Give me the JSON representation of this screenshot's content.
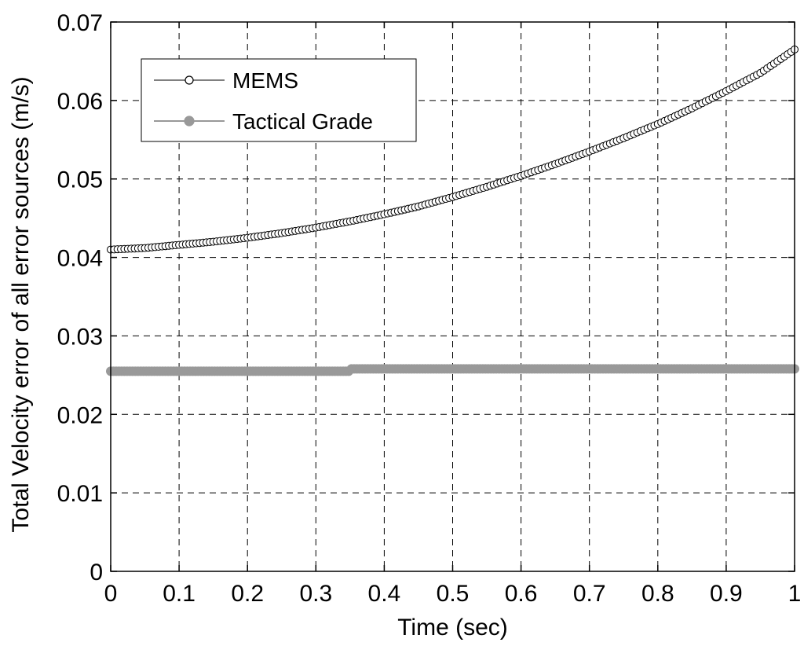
{
  "chart_data": {
    "type": "line",
    "title": "",
    "xlabel": "Time (sec)",
    "ylabel": "Total Velocity error of all error sources (m/s)",
    "xlim": [
      0,
      1
    ],
    "ylim": [
      0,
      0.07
    ],
    "xticks": [
      "0",
      "0.1",
      "0.2",
      "0.3",
      "0.4",
      "0.5",
      "0.6",
      "0.7",
      "0.8",
      "0.9",
      "1"
    ],
    "yticks": [
      "0",
      "0.01",
      "0.02",
      "0.03",
      "0.04",
      "0.05",
      "0.06",
      "0.07"
    ],
    "grid": true,
    "legend_position": "top-left",
    "series": [
      {
        "name": "MEMS",
        "color": "#000000",
        "marker": "open-circle",
        "x": [
          0,
          0.05,
          0.1,
          0.15,
          0.2,
          0.25,
          0.3,
          0.35,
          0.4,
          0.45,
          0.5,
          0.55,
          0.6,
          0.65,
          0.7,
          0.75,
          0.8,
          0.85,
          0.9,
          0.95,
          1.0
        ],
        "y": [
          0.041,
          0.0412,
          0.0416,
          0.042,
          0.0425,
          0.0431,
          0.0438,
          0.0446,
          0.0455,
          0.0465,
          0.0477,
          0.049,
          0.0504,
          0.0519,
          0.0535,
          0.0552,
          0.057,
          0.059,
          0.0612,
          0.0635,
          0.0665
        ]
      },
      {
        "name": "Tactical Grade",
        "color": "#999999",
        "marker": "filled-circle",
        "x": [
          0,
          0.35,
          0.35,
          1.0
        ],
        "y": [
          0.0255,
          0.0255,
          0.0258,
          0.0258
        ]
      }
    ]
  }
}
